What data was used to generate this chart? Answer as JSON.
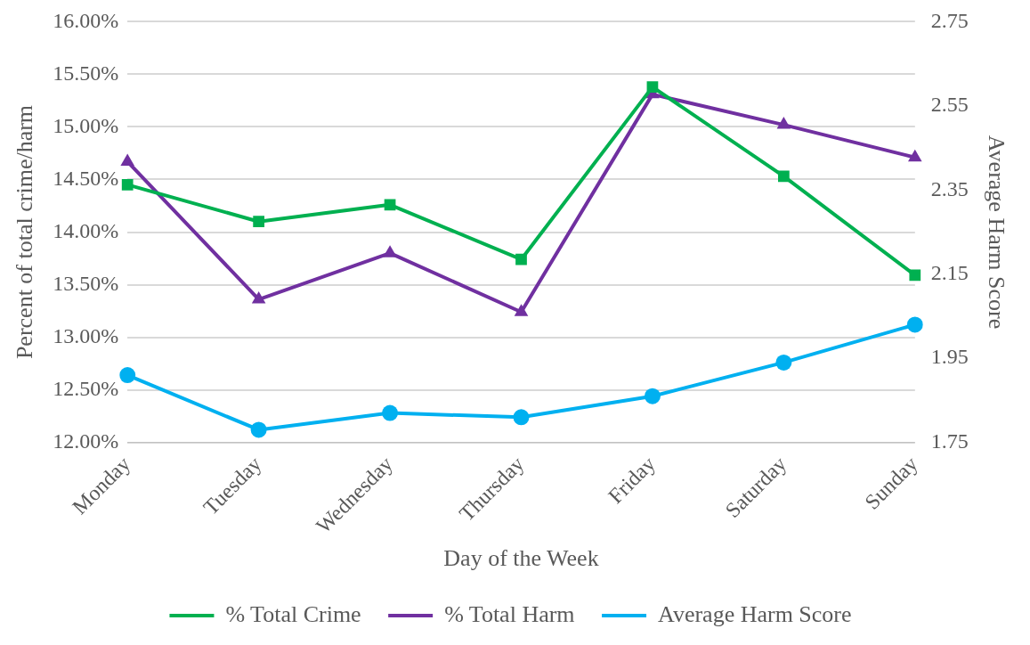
{
  "chart_data": {
    "type": "line",
    "xlabel": "Day of the Week",
    "ylabel": "Percent of total crime/harm",
    "y2label": "Average Harm Score",
    "categories": [
      "Monday",
      "Tuesday",
      "Wednesday",
      "Thursday",
      "Friday",
      "Saturday",
      "Sunday"
    ],
    "series": [
      {
        "name": "% Total Crime",
        "color": "#00b050",
        "marker": "square",
        "values": [
          14.45,
          14.1,
          14.26,
          13.74,
          15.38,
          14.53,
          13.59
        ]
      },
      {
        "name": "% Total Harm",
        "color": "#7030a0",
        "marker": "triangle",
        "values": [
          14.67,
          13.36,
          13.8,
          13.24,
          15.31,
          15.02,
          14.71
        ]
      },
      {
        "name": "Average Harm Score",
        "color": "#00b0f0",
        "marker": "circle",
        "axis": "y2",
        "values": [
          1.91,
          1.78,
          1.82,
          1.81,
          1.86,
          1.94,
          2.03
        ]
      }
    ],
    "ylim": [
      12,
      16
    ],
    "yticks": [
      {
        "value": 12,
        "label": "12.00%"
      },
      {
        "value": 12.5,
        "label": "12.50%"
      },
      {
        "value": 13,
        "label": "13.00%"
      },
      {
        "value": 13.5,
        "label": "13.50%"
      },
      {
        "value": 14,
        "label": "14.00%"
      },
      {
        "value": 14.5,
        "label": "14.50%"
      },
      {
        "value": 15,
        "label": "15.00%"
      },
      {
        "value": 15.5,
        "label": "15.50%"
      },
      {
        "value": 16,
        "label": "16.00%"
      }
    ],
    "y2lim": [
      1.75,
      2.75
    ],
    "y2ticks": [
      1.75,
      1.95,
      2.15,
      2.35,
      2.55,
      2.75
    ],
    "grid": "y",
    "legend": "bottom"
  }
}
